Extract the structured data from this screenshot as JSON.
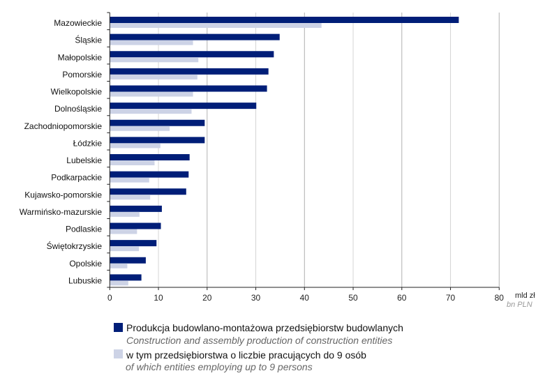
{
  "chart_data": {
    "type": "bar",
    "orientation": "horizontal",
    "categories": [
      "Mazowieckie",
      "Śląskie",
      "Małopolskie",
      "Pomorskie",
      "Wielkopolskie",
      "Dolnośląskie",
      "Zachodniopomorskie",
      "Łódzkie",
      "Lubelskie",
      "Podkarpackie",
      "Kujawsko-pomorskie",
      "Warmińsko-mazurskie",
      "Podlaskie",
      "Świętokrzyskie",
      "Opolskie",
      "Lubuskie"
    ],
    "series": [
      {
        "name": "Produkcja budowlano-montażowa przedsiębiorstw budowlanych",
        "name_en": "Construction and assembly production of construction entities",
        "color": "#001e78",
        "values": [
          71.7,
          34.9,
          33.7,
          32.6,
          32.3,
          30.1,
          19.5,
          19.5,
          16.4,
          16.2,
          15.7,
          10.7,
          10.5,
          9.6,
          7.4,
          6.5
        ]
      },
      {
        "name": "w tym przedsiębiorstwa o liczbie pracujących do 9 osób",
        "name_en": "of which entities employing up to 9 persons",
        "color": "#cdd3e6",
        "values": [
          43.5,
          17.1,
          18.2,
          18.0,
          17.1,
          16.8,
          12.3,
          10.4,
          9.2,
          8.1,
          8.3,
          6.1,
          5.6,
          6.0,
          3.6,
          3.8
        ]
      }
    ],
    "xlim": [
      0,
      80
    ],
    "xticks": [
      "0",
      "10",
      "20",
      "30",
      "40",
      "50",
      "60",
      "70",
      "80"
    ],
    "xlabel": "mld zł",
    "xlabel_en": "bn PLN",
    "grid": true,
    "legend_placement": "bottom"
  }
}
